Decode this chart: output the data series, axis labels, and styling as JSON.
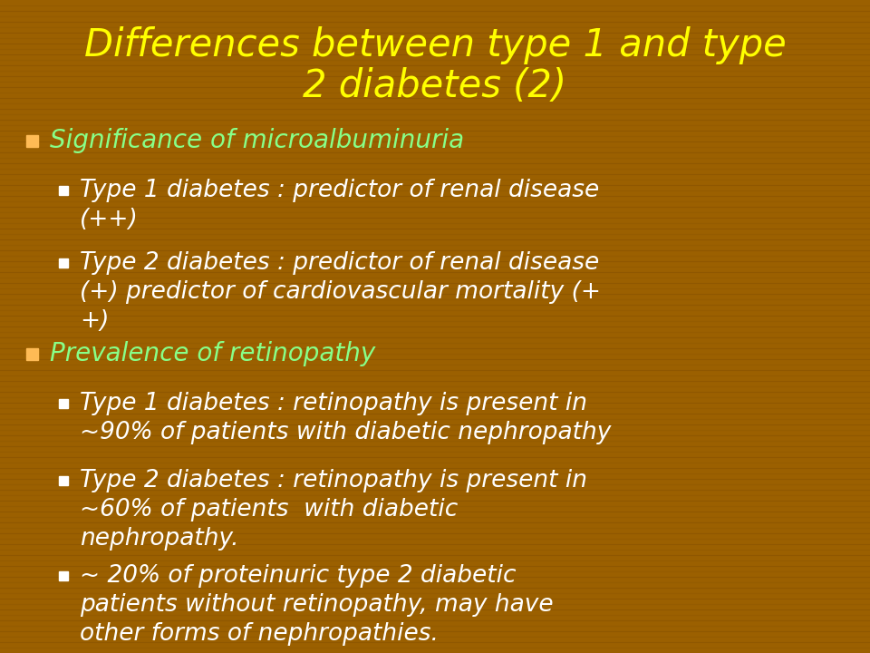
{
  "title_line1": "Differences between type 1 and type",
  "title_line2": "2 diabetes (2)",
  "title_color": "#FFFF00",
  "background_color": "#9B6000",
  "text_color_white": "#FFFFFF",
  "text_color_green": "#88FF88",
  "bullet_color_orange": "#FFBB55",
  "bullet_color_white": "#FFFFFF",
  "figsize": [
    9.6,
    7.2
  ],
  "dpi": 100,
  "bullet1_header": "Significance of microalbuminuria",
  "bullet1_sub1_line1": "Type 1 diabetes : predictor of renal disease",
  "bullet1_sub1_line2": "(++)",
  "bullet1_sub2_line1": "Type 2 diabetes : predictor of renal disease",
  "bullet1_sub2_line2": "(+) predictor of cardiovascular mortality (+",
  "bullet1_sub2_line3": "+)",
  "bullet2_header": "Prevalence of retinopathy",
  "bullet2_sub1_line1": "Type 1 diabetes : retinopathy is present in",
  "bullet2_sub1_line2": "~90% of patients with diabetic nephropathy",
  "bullet2_sub2_line1": "Type 2 diabetes : retinopathy is present in",
  "bullet2_sub2_line2": "~60% of patients  with diabetic",
  "bullet2_sub2_line3": "nephropathy.",
  "bullet2_sub3_line1": "~ 20% of proteinuric type 2 diabetic",
  "bullet2_sub3_line2": "patients without retinopathy, may have",
  "bullet2_sub3_line3": "other forms of nephropathies."
}
